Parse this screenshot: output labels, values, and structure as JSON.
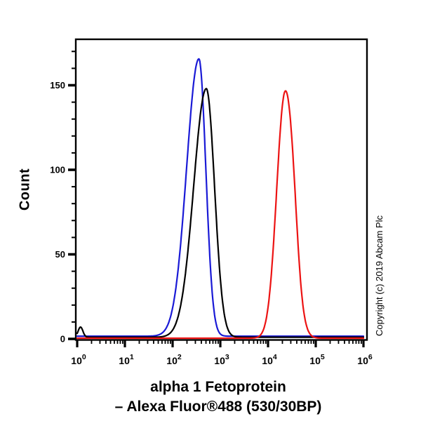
{
  "chart_data": {
    "type": "line",
    "chart_kind": "flow-cytometry-histogram",
    "title_lines": [
      "alpha 1 Fetoprotein",
      "– Alexa Fluor®488 (530/30BP)"
    ],
    "ylabel": "Count",
    "grid": false,
    "legend": null,
    "x_axis": {
      "scale": "log10",
      "base": "10",
      "exponents": [
        0,
        1,
        2,
        3,
        4,
        5,
        6
      ],
      "range": [
        1,
        1000000
      ],
      "minor_ticks_per_decade": [
        2,
        3,
        4,
        5,
        6,
        7,
        8,
        9
      ]
    },
    "y_axis": {
      "major_ticks": [
        0,
        50,
        100,
        150
      ],
      "minor_step": 10,
      "axis_top": 177
    },
    "series": [
      {
        "name": "blue-curve",
        "color": "#1a1ad6",
        "peak_log10_x": 2.551,
        "peak_x_value": 356,
        "peak_count": 164,
        "sigma_left": 0.258,
        "sigma_right": 0.145,
        "baseline": 1.6,
        "components": []
      },
      {
        "name": "black-curve",
        "color": "#000000",
        "peak_log10_x": 2.706,
        "peak_x_value": 508,
        "peak_count": 147,
        "sigma_left": 0.265,
        "sigma_right": 0.173,
        "baseline": 1.0,
        "components": [
          {
            "log10_x": 0.07,
            "sigma": 0.05,
            "height": 6
          }
        ]
      },
      {
        "name": "red-curve",
        "color": "#ec1313",
        "peak_log10_x": 4.353,
        "peak_x_value": 22500,
        "peak_count": 143,
        "sigma_left": 0.174,
        "sigma_right": 0.185,
        "baseline": 0.4,
        "components": [
          {
            "log10_x": 4.53,
            "sigma": 0.1,
            "height": 14
          }
        ]
      }
    ]
  },
  "annotations": {
    "copyright_vertical": "Copyright (c) 2019 Abcam Plc"
  }
}
